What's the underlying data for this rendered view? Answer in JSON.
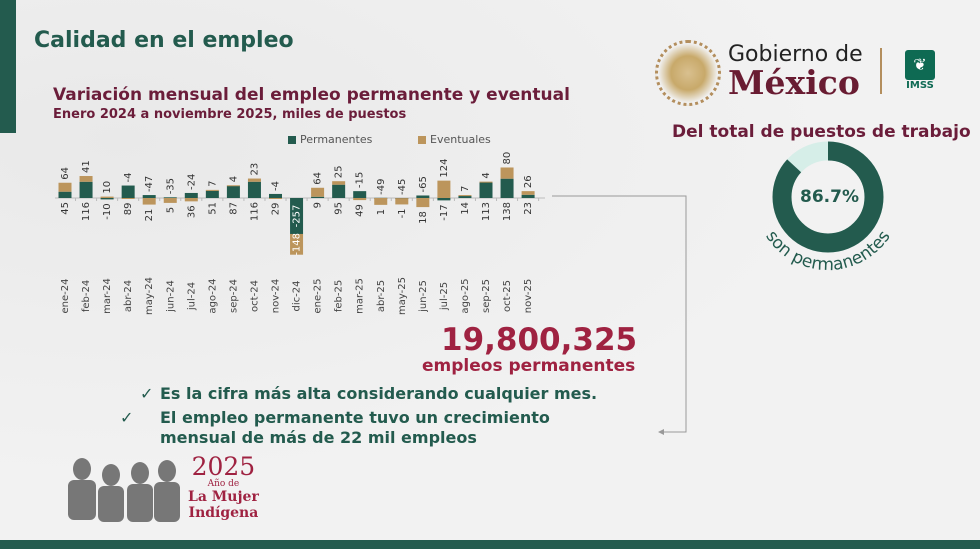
{
  "header": {
    "title": "Calidad en el empleo"
  },
  "chart_title": {
    "main": "Variación mensual del empleo permanente y eventual",
    "sub": "Enero 2024 a noviembre 2025, miles de puestos"
  },
  "colors": {
    "permanent": "#235b4e",
    "eventual": "#bc955c",
    "accent": "#9f2241"
  },
  "chart_data": {
    "type": "bar",
    "stacked": true,
    "title": "Variación mensual del empleo permanente y eventual",
    "subtitle": "Enero 2024 a noviembre 2025, miles de puestos",
    "legend": [
      "Permanentes",
      "Eventuales"
    ],
    "legend_position": "top",
    "categories": [
      "ene-24",
      "feb-24",
      "mar-24",
      "abr-24",
      "may-24",
      "jun-24",
      "jul-24",
      "ago-24",
      "sep-24",
      "oct-24",
      "nov-24",
      "dic-24",
      "ene-25",
      "feb-25",
      "mar-25",
      "abr-25",
      "may-25",
      "jun-25",
      "jul-25",
      "ago-25",
      "sep-25",
      "oct-25",
      "nov-25"
    ],
    "series": [
      {
        "name": "Permanentes",
        "values": [
          45,
          116,
          -10,
          89,
          21,
          5,
          36,
          51,
          87,
          116,
          29,
          -257,
          9,
          95,
          49,
          1,
          -1,
          18,
          -17,
          14,
          113,
          138,
          23
        ]
      },
      {
        "name": "Eventuales",
        "values": [
          64,
          41,
          10,
          -4,
          -47,
          -35,
          -24,
          7,
          4,
          23,
          -4,
          -148,
          64,
          25,
          -15,
          -49,
          -45,
          -65,
          124,
          7,
          4,
          80,
          26
        ]
      }
    ]
  },
  "highlight": {
    "value": "19,800,325",
    "label": "empleos permanentes"
  },
  "bullets": [
    {
      "check": "✓",
      "text": "Es la cifra más alta considerando cualquier mes."
    },
    {
      "check": "✓",
      "text": "El  empleo permanente tuvo un crecimiento mensual de más de 22 mil empleos"
    }
  ],
  "logo": {
    "line1": "Gobierno de",
    "line2": "México",
    "imss": "IMSS",
    "seal_text": "Estados Unidos Mexicanos"
  },
  "donut": {
    "title": "Del total de puestos de trabajo",
    "percent": 86.7,
    "label": "86.7%",
    "caption": "son permanentes"
  },
  "footer_logo": {
    "year": "2025",
    "line1": "Año de",
    "line2": "La Mujer",
    "line3": "Indígena"
  }
}
